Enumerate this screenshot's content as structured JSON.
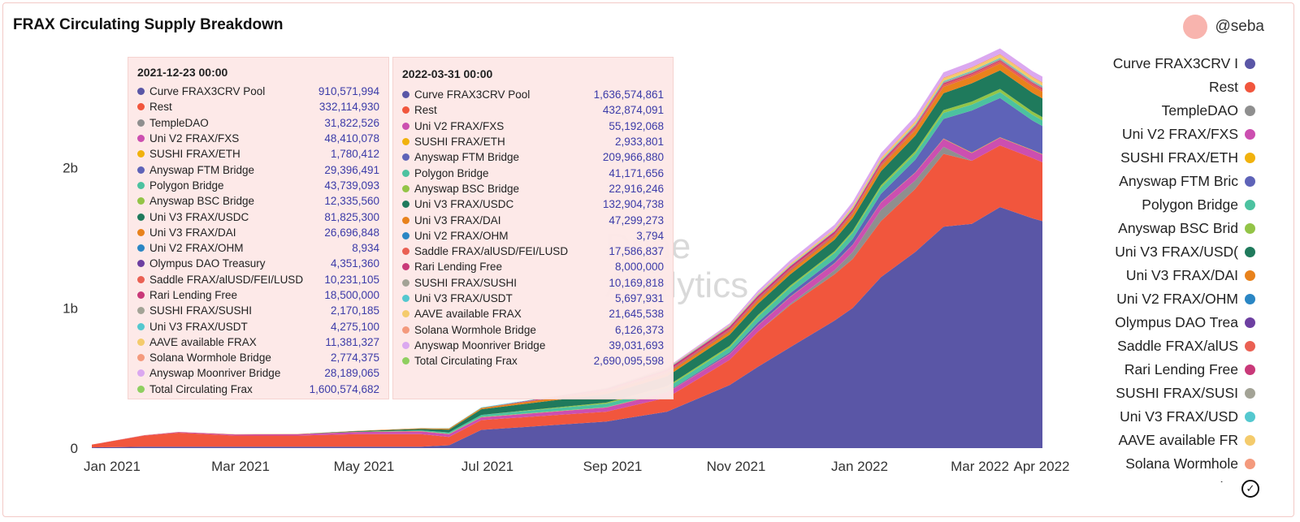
{
  "title": "FRAX Circulating Supply Breakdown",
  "author": "@seba",
  "watermark_lines": [
    "Dune",
    "Analytics"
  ],
  "colors": {
    "curve": "#5a56a6",
    "rest": "#f1563d",
    "temple": "#8f8f8f",
    "univ2fxs": "#cc4fb0",
    "sushieth": "#f1b20d",
    "ftm": "#5e63b8",
    "polygon": "#4cc2a0",
    "bsc": "#93c447",
    "univ3usdc": "#1f7a5c",
    "univ3dai": "#e8821c",
    "univ2ohm": "#2a86c4",
    "olympus": "#6d3fa1",
    "saddle": "#ea6053",
    "rari": "#c93979",
    "sushisushi": "#a3a396",
    "univ3usdt": "#54c8cf",
    "aave": "#f4cb6c",
    "solana": "#f49a7d",
    "moonriver": "#dba8f0",
    "total": "#8fcf60"
  },
  "chart_data": {
    "type": "area",
    "stacked": true,
    "title": "FRAX Circulating Supply Breakdown",
    "x_tick_labels": [
      "Jan 2021",
      "Mar 2021",
      "May 2021",
      "Jul 2021",
      "Sep 2021",
      "Nov 2021",
      "Jan 2022",
      "Mar 2022",
      "Apr 2022"
    ],
    "x_tick_index": [
      0,
      2,
      4,
      6,
      8,
      10,
      12,
      14,
      15
    ],
    "y_tick_labels": [
      "0",
      "1b",
      "2b"
    ],
    "y_tick_values": [
      0,
      1000000000,
      2000000000
    ],
    "ylim": [
      0,
      2850000000
    ],
    "x": [
      "2020-12-20",
      "2021-01-15",
      "2021-02-01",
      "2021-03-01",
      "2021-04-01",
      "2021-05-01",
      "2021-06-01",
      "2021-06-15",
      "2021-07-01",
      "2021-08-01",
      "2021-09-01",
      "2021-10-01",
      "2021-11-01",
      "2021-11-15",
      "2021-12-01",
      "2021-12-23",
      "2022-01-01",
      "2022-01-15",
      "2022-02-01",
      "2022-02-15",
      "2022-03-01",
      "2022-03-15",
      "2022-03-31",
      "2022-04-05"
    ],
    "series": [
      {
        "name": "Curve FRAX3CRV Pool",
        "color_key": "curve",
        "values": [
          0.005,
          0.01,
          0.01,
          0.01,
          0.01,
          0.01,
          0.01,
          0.02,
          0.13,
          0.16,
          0.19,
          0.26,
          0.45,
          0.58,
          0.72,
          0.91,
          1.0,
          1.22,
          1.4,
          1.58,
          1.6,
          1.72,
          1.64,
          1.62
        ]
      },
      {
        "name": "Rest",
        "color_key": "rest",
        "values": [
          0.02,
          0.08,
          0.1,
          0.08,
          0.08,
          0.09,
          0.09,
          0.06,
          0.07,
          0.07,
          0.07,
          0.1,
          0.18,
          0.25,
          0.3,
          0.33,
          0.35,
          0.4,
          0.45,
          0.52,
          0.45,
          0.44,
          0.43,
          0.42
        ]
      },
      {
        "name": "TempleDAO",
        "color_key": "temple",
        "values": [
          0,
          0,
          0,
          0,
          0,
          0,
          0,
          0,
          0,
          0,
          0,
          0,
          0,
          0,
          0.01,
          0.03,
          0.05,
          0.08,
          0.06,
          0.05,
          0,
          0,
          0,
          0
        ]
      },
      {
        "name": "Uni V2 FRAX/FXS",
        "color_key": "univ2fxs",
        "values": [
          0,
          0.002,
          0.005,
          0.008,
          0.01,
          0.015,
          0.02,
          0.02,
          0.02,
          0.025,
          0.03,
          0.035,
          0.04,
          0.045,
          0.048,
          0.048,
          0.05,
          0.052,
          0.055,
          0.056,
          0.056,
          0.055,
          0.055,
          0.055
        ]
      },
      {
        "name": "SUSHI FRAX/ETH",
        "color_key": "sushieth",
        "values": [
          0,
          0.001,
          0.001,
          0.001,
          0.0015,
          0.0015,
          0.002,
          0.002,
          0.002,
          0.002,
          0.002,
          0.002,
          0.002,
          0.002,
          0.002,
          0.002,
          0.002,
          0.0025,
          0.0025,
          0.003,
          0.003,
          0.003,
          0.003,
          0.003
        ]
      },
      {
        "name": "Anyswap FTM Bridge",
        "color_key": "ftm",
        "values": [
          0,
          0,
          0,
          0,
          0,
          0,
          0,
          0,
          0,
          0,
          0,
          0.005,
          0.01,
          0.02,
          0.025,
          0.029,
          0.04,
          0.06,
          0.09,
          0.14,
          0.3,
          0.28,
          0.21,
          0.2
        ]
      },
      {
        "name": "Polygon Bridge",
        "color_key": "polygon",
        "values": [
          0,
          0,
          0,
          0,
          0,
          0,
          0.005,
          0.01,
          0.015,
          0.02,
          0.025,
          0.03,
          0.035,
          0.04,
          0.042,
          0.044,
          0.045,
          0.045,
          0.044,
          0.043,
          0.042,
          0.042,
          0.041,
          0.041
        ]
      },
      {
        "name": "Anyswap BSC Bridge",
        "color_key": "bsc",
        "values": [
          0,
          0,
          0,
          0,
          0,
          0,
          0,
          0,
          0,
          0.005,
          0.008,
          0.01,
          0.012,
          0.012,
          0.012,
          0.012,
          0.014,
          0.016,
          0.018,
          0.02,
          0.022,
          0.023,
          0.023,
          0.023
        ]
      },
      {
        "name": "Uni V3 FRAX/USDC",
        "color_key": "univ3usdc",
        "values": [
          0,
          0,
          0,
          0,
          0,
          0.005,
          0.01,
          0.02,
          0.04,
          0.05,
          0.06,
          0.07,
          0.08,
          0.08,
          0.08,
          0.082,
          0.09,
          0.1,
          0.11,
          0.12,
          0.13,
          0.133,
          0.133,
          0.133
        ]
      },
      {
        "name": "Uni V3 FRAX/DAI",
        "color_key": "univ3dai",
        "values": [
          0,
          0,
          0,
          0,
          0,
          0.002,
          0.005,
          0.008,
          0.01,
          0.015,
          0.02,
          0.022,
          0.025,
          0.026,
          0.026,
          0.027,
          0.03,
          0.035,
          0.04,
          0.045,
          0.047,
          0.047,
          0.047,
          0.047
        ]
      },
      {
        "name": "Uni V2 FRAX/OHM",
        "color_key": "univ2ohm",
        "values": [
          0,
          0,
          0,
          0,
          0,
          0,
          0,
          0,
          0,
          0.0001,
          0.0001,
          0.0001,
          0.0001,
          0.0001,
          0.0001,
          0.0001,
          0.0001,
          0.0001,
          0.0001,
          0,
          0,
          0,
          0,
          0
        ]
      },
      {
        "name": "Olympus DAO Treasury",
        "color_key": "olympus",
        "values": [
          0,
          0,
          0,
          0,
          0,
          0,
          0,
          0,
          0,
          0.002,
          0.003,
          0.004,
          0.004,
          0.004,
          0.004,
          0.004,
          0.004,
          0.003,
          0.002,
          0.001,
          0,
          0,
          0,
          0
        ]
      },
      {
        "name": "Saddle FRAX/alUSD/FEI/LUSD",
        "color_key": "saddle",
        "values": [
          0,
          0,
          0,
          0,
          0,
          0,
          0,
          0,
          0,
          0.002,
          0.005,
          0.008,
          0.01,
          0.01,
          0.01,
          0.01,
          0.012,
          0.014,
          0.015,
          0.016,
          0.017,
          0.018,
          0.018,
          0.018
        ]
      },
      {
        "name": "Rari Lending Free",
        "color_key": "rari",
        "values": [
          0,
          0,
          0,
          0,
          0,
          0,
          0,
          0,
          0,
          0.005,
          0.01,
          0.015,
          0.018,
          0.018,
          0.018,
          0.018,
          0.016,
          0.014,
          0.012,
          0.01,
          0.009,
          0.008,
          0.008,
          0.008
        ]
      },
      {
        "name": "SUSHI FRAX/SUSHI",
        "color_key": "sushisushi",
        "values": [
          0,
          0,
          0,
          0,
          0,
          0,
          0,
          0,
          0,
          0,
          0.001,
          0.001,
          0.002,
          0.002,
          0.002,
          0.002,
          0.004,
          0.006,
          0.008,
          0.009,
          0.01,
          0.01,
          0.01,
          0.01
        ]
      },
      {
        "name": "Uni V3 FRAX/USDT",
        "color_key": "univ3usdt",
        "values": [
          0,
          0,
          0,
          0,
          0,
          0,
          0.001,
          0.002,
          0.003,
          0.003,
          0.004,
          0.004,
          0.004,
          0.004,
          0.004,
          0.004,
          0.005,
          0.005,
          0.005,
          0.006,
          0.006,
          0.006,
          0.006,
          0.006
        ]
      },
      {
        "name": "AAVE available FRAX",
        "color_key": "aave",
        "values": [
          0,
          0,
          0,
          0,
          0,
          0,
          0,
          0,
          0,
          0,
          0.002,
          0.004,
          0.006,
          0.008,
          0.01,
          0.011,
          0.013,
          0.015,
          0.017,
          0.019,
          0.021,
          0.022,
          0.022,
          0.022
        ]
      },
      {
        "name": "Solana Wormhole Bridge",
        "color_key": "solana",
        "values": [
          0,
          0,
          0,
          0,
          0,
          0,
          0,
          0,
          0,
          0,
          0,
          0.001,
          0.002,
          0.002,
          0.0025,
          0.003,
          0.003,
          0.004,
          0.005,
          0.006,
          0.006,
          0.006,
          0.006,
          0.006
        ]
      },
      {
        "name": "Anyswap Moonriver Bridge",
        "color_key": "moonriver",
        "values": [
          0,
          0,
          0,
          0,
          0,
          0,
          0,
          0,
          0,
          0,
          0,
          0.005,
          0.01,
          0.02,
          0.025,
          0.028,
          0.03,
          0.033,
          0.035,
          0.037,
          0.038,
          0.039,
          0.039,
          0.039
        ]
      }
    ],
    "values_unit": "billions"
  },
  "tooltips": [
    {
      "date": "2021-12-23 00:00",
      "rows": [
        {
          "name": "Curve FRAX3CRV Pool",
          "value": "910,571,994",
          "color_key": "curve"
        },
        {
          "name": "Rest",
          "value": "332,114,930",
          "color_key": "rest"
        },
        {
          "name": "TempleDAO",
          "value": "31,822,526",
          "color_key": "temple"
        },
        {
          "name": "Uni V2 FRAX/FXS",
          "value": "48,410,078",
          "color_key": "univ2fxs"
        },
        {
          "name": "SUSHI FRAX/ETH",
          "value": "1,780,412",
          "color_key": "sushieth"
        },
        {
          "name": "Anyswap FTM Bridge",
          "value": "29,396,491",
          "color_key": "ftm"
        },
        {
          "name": "Polygon Bridge",
          "value": "43,739,093",
          "color_key": "polygon"
        },
        {
          "name": "Anyswap BSC Bridge",
          "value": "12,335,560",
          "color_key": "bsc"
        },
        {
          "name": "Uni V3 FRAX/USDC",
          "value": "81,825,300",
          "color_key": "univ3usdc"
        },
        {
          "name": "Uni V3 FRAX/DAI",
          "value": "26,696,848",
          "color_key": "univ3dai"
        },
        {
          "name": "Uni V2 FRAX/OHM",
          "value": "8,934",
          "color_key": "univ2ohm"
        },
        {
          "name": "Olympus DAO Treasury",
          "value": "4,351,360",
          "color_key": "olympus"
        },
        {
          "name": "Saddle FRAX/alUSD/FEI/LUSD",
          "value": "10,231,105",
          "color_key": "saddle"
        },
        {
          "name": "Rari Lending Free",
          "value": "18,500,000",
          "color_key": "rari"
        },
        {
          "name": "SUSHI FRAX/SUSHI",
          "value": "2,170,185",
          "color_key": "sushisushi"
        },
        {
          "name": "Uni V3 FRAX/USDT",
          "value": "4,275,100",
          "color_key": "univ3usdt"
        },
        {
          "name": "AAVE available FRAX",
          "value": "11,381,327",
          "color_key": "aave"
        },
        {
          "name": "Solana Wormhole Bridge",
          "value": "2,774,375",
          "color_key": "solana"
        },
        {
          "name": "Anyswap Moonriver Bridge",
          "value": "28,189,065",
          "color_key": "moonriver"
        },
        {
          "name": "Total Circulating Frax",
          "value": "1,600,574,682",
          "color_key": "total"
        }
      ]
    },
    {
      "date": "2022-03-31 00:00",
      "rows": [
        {
          "name": "Curve FRAX3CRV Pool",
          "value": "1,636,574,861",
          "color_key": "curve"
        },
        {
          "name": "Rest",
          "value": "432,874,091",
          "color_key": "rest"
        },
        {
          "name": "Uni V2 FRAX/FXS",
          "value": "55,192,068",
          "color_key": "univ2fxs"
        },
        {
          "name": "SUSHI FRAX/ETH",
          "value": "2,933,801",
          "color_key": "sushieth"
        },
        {
          "name": "Anyswap FTM Bridge",
          "value": "209,966,880",
          "color_key": "ftm"
        },
        {
          "name": "Polygon Bridge",
          "value": "41,171,656",
          "color_key": "polygon"
        },
        {
          "name": "Anyswap BSC Bridge",
          "value": "22,916,246",
          "color_key": "bsc"
        },
        {
          "name": "Uni V3 FRAX/USDC",
          "value": "132,904,738",
          "color_key": "univ3usdc"
        },
        {
          "name": "Uni V3 FRAX/DAI",
          "value": "47,299,273",
          "color_key": "univ3dai"
        },
        {
          "name": "Uni V2 FRAX/OHM",
          "value": "3,794",
          "color_key": "univ2ohm"
        },
        {
          "name": "Saddle FRAX/alUSD/FEI/LUSD",
          "value": "17,586,837",
          "color_key": "saddle"
        },
        {
          "name": "Rari Lending Free",
          "value": "8,000,000",
          "color_key": "rari"
        },
        {
          "name": "SUSHI FRAX/SUSHI",
          "value": "10,169,818",
          "color_key": "sushisushi"
        },
        {
          "name": "Uni V3 FRAX/USDT",
          "value": "5,697,931",
          "color_key": "univ3usdt"
        },
        {
          "name": "AAVE available FRAX",
          "value": "21,645,538",
          "color_key": "aave"
        },
        {
          "name": "Solana Wormhole Bridge",
          "value": "6,126,373",
          "color_key": "solana"
        },
        {
          "name": "Anyswap Moonriver Bridge",
          "value": "39,031,693",
          "color_key": "moonriver"
        },
        {
          "name": "Total Circulating Frax",
          "value": "2,690,095,598",
          "color_key": "total"
        }
      ]
    }
  ],
  "legend": [
    {
      "label": "Curve FRAX3CRV I",
      "color_key": "curve"
    },
    {
      "label": "Rest",
      "color_key": "rest"
    },
    {
      "label": "TempleDAO",
      "color_key": "temple"
    },
    {
      "label": "Uni V2 FRAX/FXS",
      "color_key": "univ2fxs"
    },
    {
      "label": "SUSHI FRAX/ETH",
      "color_key": "sushieth"
    },
    {
      "label": "Anyswap FTM Bric",
      "color_key": "ftm"
    },
    {
      "label": "Polygon Bridge",
      "color_key": "polygon"
    },
    {
      "label": "Anyswap BSC Brid",
      "color_key": "bsc"
    },
    {
      "label": "Uni V3 FRAX/USD(",
      "color_key": "univ3usdc"
    },
    {
      "label": "Uni V3 FRAX/DAI",
      "color_key": "univ3dai"
    },
    {
      "label": "Uni V2 FRAX/OHM",
      "color_key": "univ2ohm"
    },
    {
      "label": "Olympus DAO Trea",
      "color_key": "olympus"
    },
    {
      "label": "Saddle FRAX/alUS",
      "color_key": "saddle"
    },
    {
      "label": "Rari Lending Free",
      "color_key": "rari"
    },
    {
      "label": "SUSHI FRAX/SUSI",
      "color_key": "sushisushi"
    },
    {
      "label": "Uni V3 FRAX/USD",
      "color_key": "univ3usdt"
    },
    {
      "label": "AAVE available FR",
      "color_key": "aave"
    },
    {
      "label": "Solana Wormhole",
      "color_key": "solana"
    },
    {
      "label": "Anyswap Moonrive",
      "color_key": "moonriver"
    }
  ]
}
